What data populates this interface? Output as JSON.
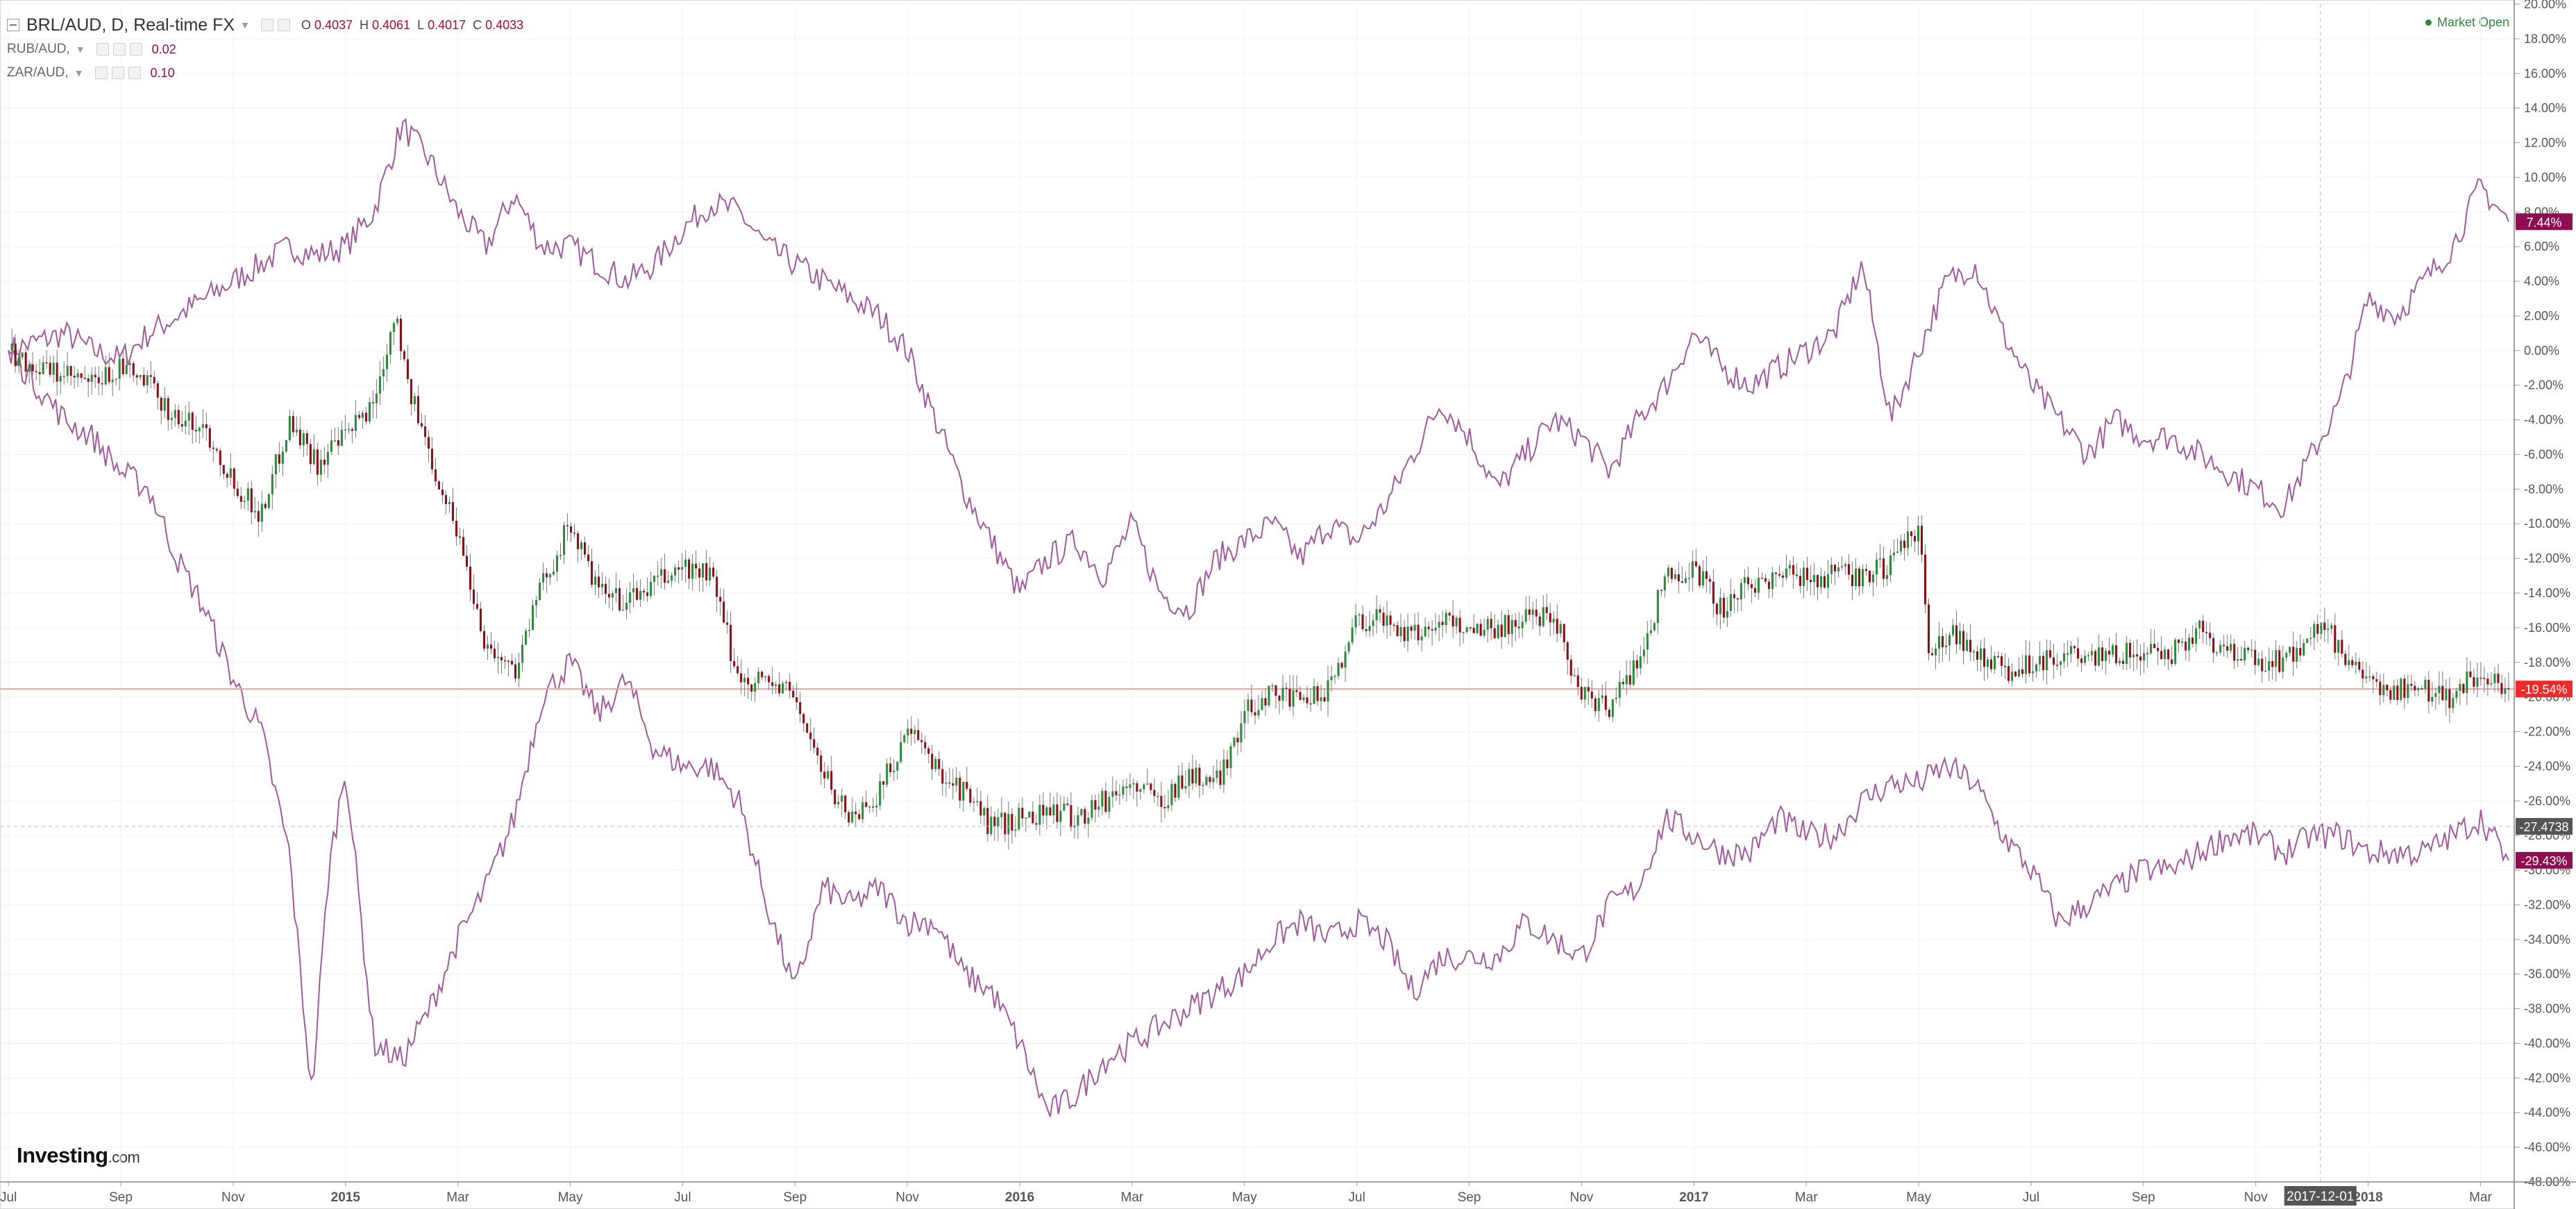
{
  "header": {
    "symbol": "BRL/AUD, D, Real-time FX",
    "ohlc": [
      {
        "k": "O",
        "v": "0.4037"
      },
      {
        "k": "H",
        "v": "0.4061"
      },
      {
        "k": "L",
        "v": "0.4017"
      },
      {
        "k": "C",
        "v": "0.4033"
      }
    ],
    "indicators": [
      {
        "name": "RUB/AUD,",
        "value": "0.02"
      },
      {
        "name": "ZAR/AUD,",
        "value": "0.10"
      }
    ],
    "market_status": "Market Open"
  },
  "logo": {
    "main": "Investing",
    "suffix": ".com"
  },
  "colors": {
    "up_candle": "#2e8b3d",
    "down_candle": "#8b0f17",
    "compare_line": "#a15a9c",
    "last_price_line": "#f2a3a3",
    "last_price_badge": "#ee2a2a",
    "compare_badge": "#8e0f4f",
    "crosshair_badge": "#555555"
  },
  "chart_data": {
    "type": "line",
    "yaxis": {
      "unit": "%",
      "min": -48,
      "max": 20,
      "step": 2
    },
    "x_tick_labels": [
      {
        "label": "Jul",
        "t": 0,
        "bold": false
      },
      {
        "label": "Sep",
        "t": 2,
        "bold": false
      },
      {
        "label": "Nov",
        "t": 4,
        "bold": false
      },
      {
        "label": "2015",
        "t": 6,
        "bold": true
      },
      {
        "label": "Mar",
        "t": 8,
        "bold": false
      },
      {
        "label": "May",
        "t": 10,
        "bold": false
      },
      {
        "label": "Jul",
        "t": 12,
        "bold": false
      },
      {
        "label": "Sep",
        "t": 14,
        "bold": false
      },
      {
        "label": "Nov",
        "t": 16,
        "bold": false
      },
      {
        "label": "2016",
        "t": 18,
        "bold": true
      },
      {
        "label": "Mar",
        "t": 20,
        "bold": false
      },
      {
        "label": "May",
        "t": 22,
        "bold": false
      },
      {
        "label": "Jul",
        "t": 24,
        "bold": false
      },
      {
        "label": "Sep",
        "t": 26,
        "bold": false
      },
      {
        "label": "Nov",
        "t": 28,
        "bold": false
      },
      {
        "label": "2017",
        "t": 30,
        "bold": true
      },
      {
        "label": "Mar",
        "t": 32,
        "bold": false
      },
      {
        "label": "May",
        "t": 34,
        "bold": false
      },
      {
        "label": "Jul",
        "t": 36,
        "bold": false
      },
      {
        "label": "Sep",
        "t": 38,
        "bold": false
      },
      {
        "label": "Nov",
        "t": 40,
        "bold": false
      },
      {
        "label": "2018",
        "t": 42,
        "bold": true
      },
      {
        "label": "Mar",
        "t": 44,
        "bold": false
      }
    ],
    "t_range": [
      -0.15,
      44.6
    ],
    "crosshair": {
      "t": 41.15,
      "y": -27.47,
      "date_label": "2017-12-01",
      "value_label": "-27.4738"
    },
    "main_series": {
      "name": "BRL/AUD",
      "style": "candles",
      "last_label": "-19.54%",
      "points": [
        [
          0,
          0
        ],
        [
          0.5,
          -1
        ],
        [
          1,
          -1.5
        ],
        [
          1.5,
          -2
        ],
        [
          2,
          -1
        ],
        [
          2.5,
          -2
        ],
        [
          3,
          -4
        ],
        [
          3.5,
          -4.5
        ],
        [
          4,
          -7.5
        ],
        [
          4.5,
          -9.5
        ],
        [
          5,
          -4
        ],
        [
          5.5,
          -6.5
        ],
        [
          6,
          -5
        ],
        [
          6.5,
          -3
        ],
        [
          6.9,
          2.5
        ],
        [
          7.1,
          -2
        ],
        [
          7.5,
          -6
        ],
        [
          8,
          -10.5
        ],
        [
          8.5,
          -17
        ],
        [
          9,
          -18.5
        ],
        [
          9.5,
          -13.5
        ],
        [
          10,
          -10
        ],
        [
          10.5,
          -14
        ],
        [
          11,
          -14.5
        ],
        [
          11.5,
          -13.5
        ],
        [
          12,
          -12.5
        ],
        [
          12.5,
          -13
        ],
        [
          13,
          -19
        ],
        [
          13.5,
          -19
        ],
        [
          14,
          -20
        ],
        [
          14.5,
          -24.5
        ],
        [
          15,
          -27
        ],
        [
          15.5,
          -25.5
        ],
        [
          16,
          -22
        ],
        [
          16.5,
          -24
        ],
        [
          17,
          -25.5
        ],
        [
          17.5,
          -27.5
        ],
        [
          18,
          -27
        ],
        [
          18.5,
          -26.5
        ],
        [
          19,
          -27
        ],
        [
          19.5,
          -26
        ],
        [
          20,
          -25
        ],
        [
          20.5,
          -26
        ],
        [
          21,
          -24.5
        ],
        [
          21.5,
          -25
        ],
        [
          22,
          -21
        ],
        [
          22.5,
          -19.5
        ],
        [
          23,
          -20.5
        ],
        [
          23.5,
          -19.5
        ],
        [
          24,
          -15.5
        ],
        [
          24.5,
          -15.5
        ],
        [
          25,
          -16.5
        ],
        [
          25.5,
          -15.5
        ],
        [
          26,
          -16
        ],
        [
          26.5,
          -16
        ],
        [
          27,
          -15.5
        ],
        [
          27.5,
          -15
        ],
        [
          28,
          -20
        ],
        [
          28.5,
          -20.5
        ],
        [
          29,
          -18
        ],
        [
          29.5,
          -13
        ],
        [
          30,
          -12.5
        ],
        [
          30.5,
          -15
        ],
        [
          31,
          -13.5
        ],
        [
          31.5,
          -13
        ],
        [
          32,
          -13
        ],
        [
          32.5,
          -13
        ],
        [
          33,
          -13
        ],
        [
          33.5,
          -12.5
        ],
        [
          34,
          -10
        ],
        [
          34.2,
          -18
        ],
        [
          34.6,
          -16
        ],
        [
          35,
          -17.5
        ],
        [
          35.5,
          -18.5
        ],
        [
          36,
          -18
        ],
        [
          36.5,
          -17.5
        ],
        [
          37,
          -18
        ],
        [
          37.5,
          -17.5
        ],
        [
          38,
          -17.5
        ],
        [
          38.5,
          -17.5
        ],
        [
          39,
          -16
        ],
        [
          39.5,
          -17.5
        ],
        [
          40,
          -18
        ],
        [
          40.5,
          -18
        ],
        [
          41,
          -16.5
        ],
        [
          41.2,
          -15.5
        ],
        [
          41.5,
          -17.5
        ],
        [
          42,
          -19.5
        ],
        [
          42.5,
          -19.5
        ],
        [
          43,
          -19.5
        ],
        [
          43.5,
          -20
        ],
        [
          44,
          -18.5
        ],
        [
          44.3,
          -19.5
        ],
        [
          44.5,
          -19.54
        ]
      ]
    },
    "compare_series": [
      {
        "name": "RUB/AUD",
        "last_label": "7.44%",
        "points": [
          [
            0,
            0
          ],
          [
            0.5,
            0.5
          ],
          [
            1,
            1
          ],
          [
            1.5,
            0
          ],
          [
            2,
            -0.5
          ],
          [
            2.5,
            1
          ],
          [
            3,
            2
          ],
          [
            3.5,
            3
          ],
          [
            4,
            4
          ],
          [
            4.5,
            5
          ],
          [
            5,
            6
          ],
          [
            5.5,
            5.5
          ],
          [
            6,
            6
          ],
          [
            6.5,
            8
          ],
          [
            7,
            13
          ],
          [
            7.5,
            11
          ],
          [
            8,
            8
          ],
          [
            8.5,
            6
          ],
          [
            9,
            9
          ],
          [
            9.5,
            6
          ],
          [
            10,
            6
          ],
          [
            10.5,
            5
          ],
          [
            11,
            4
          ],
          [
            11.5,
            5
          ],
          [
            12,
            7
          ],
          [
            12.5,
            8.5
          ],
          [
            13,
            8
          ],
          [
            13.5,
            6
          ],
          [
            14,
            5
          ],
          [
            14.5,
            4
          ],
          [
            15,
            3
          ],
          [
            15.5,
            2
          ],
          [
            16,
            0
          ],
          [
            16.5,
            -4
          ],
          [
            17,
            -8
          ],
          [
            17.5,
            -11
          ],
          [
            18,
            -14
          ],
          [
            18.5,
            -12
          ],
          [
            19,
            -11
          ],
          [
            19.5,
            -13
          ],
          [
            20,
            -10
          ],
          [
            20.5,
            -14
          ],
          [
            21,
            -15
          ],
          [
            21.5,
            -12
          ],
          [
            22,
            -11
          ],
          [
            22.5,
            -10
          ],
          [
            23,
            -12
          ],
          [
            23.5,
            -10
          ],
          [
            24,
            -11
          ],
          [
            24.5,
            -9
          ],
          [
            25,
            -6
          ],
          [
            25.5,
            -3
          ],
          [
            26,
            -5
          ],
          [
            26.5,
            -8
          ],
          [
            27,
            -6
          ],
          [
            27.5,
            -4
          ],
          [
            28,
            -5
          ],
          [
            28.5,
            -7
          ],
          [
            29,
            -4
          ],
          [
            29.5,
            -2
          ],
          [
            30,
            1
          ],
          [
            30.5,
            -1
          ],
          [
            31,
            -2
          ],
          [
            31.5,
            -1
          ],
          [
            32,
            0
          ],
          [
            32.5,
            1
          ],
          [
            33,
            5
          ],
          [
            33.5,
            -4
          ],
          [
            34,
            0
          ],
          [
            34.5,
            4
          ],
          [
            35,
            5
          ],
          [
            35.5,
            1
          ],
          [
            36,
            -2
          ],
          [
            36.5,
            -4
          ],
          [
            37,
            -6
          ],
          [
            37.5,
            -4
          ],
          [
            38,
            -5
          ],
          [
            38.5,
            -5
          ],
          [
            39,
            -6
          ],
          [
            39.5,
            -7
          ],
          [
            40,
            -8
          ],
          [
            40.5,
            -9
          ],
          [
            41,
            -6
          ],
          [
            41.5,
            -3
          ],
          [
            42,
            3
          ],
          [
            42.5,
            2
          ],
          [
            43,
            4
          ],
          [
            43.5,
            6
          ],
          [
            44,
            9.5
          ],
          [
            44.5,
            7.44
          ]
        ]
      },
      {
        "name": "ZAR/AUD",
        "last_label": "-29.43%",
        "points": [
          [
            0,
            0
          ],
          [
            0.5,
            -2
          ],
          [
            1,
            -4
          ],
          [
            1.5,
            -5
          ],
          [
            2,
            -7
          ],
          [
            2.5,
            -8
          ],
          [
            3,
            -12
          ],
          [
            3.5,
            -15
          ],
          [
            4,
            -19
          ],
          [
            4.5,
            -22
          ],
          [
            5,
            -29
          ],
          [
            5.4,
            -43
          ],
          [
            5.7,
            -30
          ],
          [
            6,
            -24
          ],
          [
            6.5,
            -40
          ],
          [
            7,
            -41
          ],
          [
            7.5,
            -38
          ],
          [
            8,
            -34
          ],
          [
            8.5,
            -31
          ],
          [
            9,
            -27
          ],
          [
            9.5,
            -20
          ],
          [
            10,
            -18
          ],
          [
            10.5,
            -21
          ],
          [
            11,
            -19
          ],
          [
            11.5,
            -23
          ],
          [
            12,
            -24
          ],
          [
            12.5,
            -24
          ],
          [
            13,
            -26
          ],
          [
            13.5,
            -32
          ],
          [
            14,
            -37
          ],
          [
            14.5,
            -31
          ],
          [
            15,
            -32
          ],
          [
            15.5,
            -31
          ],
          [
            16,
            -33
          ],
          [
            16.5,
            -33
          ],
          [
            17,
            -36
          ],
          [
            17.5,
            -37
          ],
          [
            18,
            -40
          ],
          [
            18.5,
            -44
          ],
          [
            19,
            -43
          ],
          [
            19.5,
            -41
          ],
          [
            20,
            -40
          ],
          [
            20.5,
            -39
          ],
          [
            21,
            -38
          ],
          [
            21.5,
            -37
          ],
          [
            22,
            -36
          ],
          [
            22.5,
            -34
          ],
          [
            23,
            -33
          ],
          [
            23.5,
            -34
          ],
          [
            24,
            -33
          ],
          [
            24.5,
            -34
          ],
          [
            25,
            -37
          ],
          [
            25.5,
            -35
          ],
          [
            26,
            -35
          ],
          [
            26.5,
            -35
          ],
          [
            27,
            -33
          ],
          [
            27.5,
            -34
          ],
          [
            28,
            -35
          ],
          [
            28.5,
            -32
          ],
          [
            29,
            -31
          ],
          [
            29.5,
            -27
          ],
          [
            30,
            -28
          ],
          [
            30.5,
            -29
          ],
          [
            31,
            -29
          ],
          [
            31.5,
            -27
          ],
          [
            32,
            -28
          ],
          [
            32.5,
            -28
          ],
          [
            33,
            -26
          ],
          [
            33.5,
            -25
          ],
          [
            34,
            -25
          ],
          [
            34.5,
            -24
          ],
          [
            35,
            -25
          ],
          [
            35.5,
            -28
          ],
          [
            36,
            -30
          ],
          [
            36.5,
            -33
          ],
          [
            37,
            -32
          ],
          [
            37.5,
            -31
          ],
          [
            38,
            -30
          ],
          [
            38.5,
            -30
          ],
          [
            39,
            -29
          ],
          [
            39.5,
            -28
          ],
          [
            40,
            -28
          ],
          [
            40.5,
            -29
          ],
          [
            41,
            -28
          ],
          [
            41.5,
            -28
          ],
          [
            42,
            -29
          ],
          [
            42.5,
            -29
          ],
          [
            43,
            -29
          ],
          [
            43.5,
            -28
          ],
          [
            44,
            -27
          ],
          [
            44.5,
            -29.43
          ]
        ]
      }
    ]
  }
}
